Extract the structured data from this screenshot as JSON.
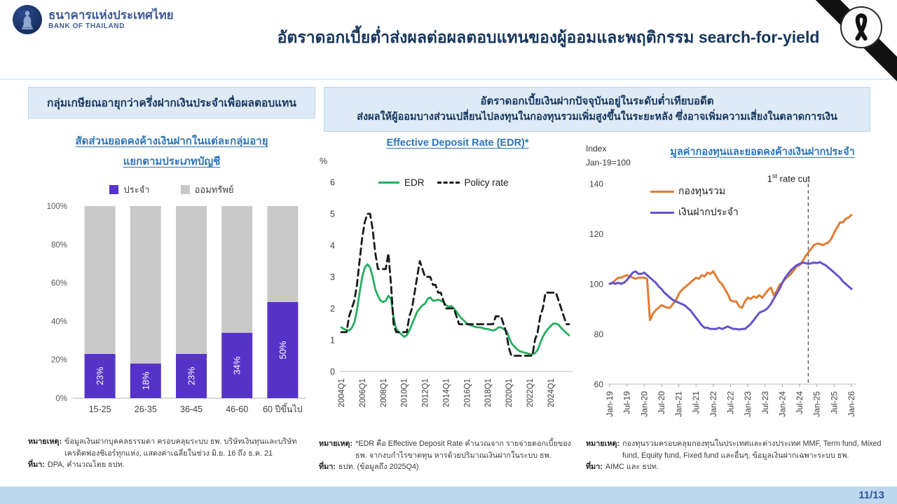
{
  "header": {
    "bank_name_th": "ธนาคารแห่งประเทศไทย",
    "bank_name_en": "BANK OF THAILAND",
    "title": "อัตราดอกเบี้ยต่ำส่งผลต่อผลตอบแทนของผู้ออมและพฤติกรรม search-for-yield"
  },
  "left_panel": {
    "headline": "กลุ่มเกษียณอายุกว่าครึ่งฝากเงินประจำเพื่อผลตอบแทน",
    "chart_title_line1": "สัดส่วนยอดคงค้างเงินฝากในแต่ละกลุ่มอายุ",
    "chart_title_line2": "แยกตามประเภทบัญชี",
    "legend": [
      "ประจำ",
      "ออมทรัพย์"
    ],
    "note_label": "หมายเหตุ:",
    "note_text": "ข้อมูลเงินฝากบุคคลธรรมดา ครอบคลุมระบบ ธพ. บริษัทเงินทุนและบริษัทเครดิตฟองซิเอร์ทุกแห่ง, แสดงค่าเฉลี่ยในช่วง มิ.ย. 16 ถึง ธ.ค. 21",
    "source_label": "ที่มา:",
    "source_text": "DPA, คำนวณโดย ธปท."
  },
  "right_headline": {
    "line1": "อัตราดอกเบี้ยเงินฝากปัจจุบันอยู่ในระดับต่ำเทียบอดีต",
    "line2": "ส่งผลให้ผู้ออมบางส่วนเปลี่ยนไปลงทุนในกองทุนรวมเพิ่มสูงขึ้นในระยะหลัง ซึ่งอาจเพิ่มความเสี่ยงในตลาดการเงิน"
  },
  "edr_panel": {
    "title": "Effective Deposit Rate (EDR)*",
    "y_unit": "%",
    "legend": [
      "EDR",
      "Policy rate"
    ],
    "note_label": "หมายเหตุ:",
    "note_text": "*EDR คือ Effective Deposit Rate คำนวณจาก รายจ่ายดอกเบี้ยของ ธพ. จากงบกำไรขาดทุน หารด้วยปริมาณเงินฝากในระบบ ธพ.",
    "source_label": "ที่มา:",
    "source_text": "ธปท. (ข้อมูลถึง 2025Q4)"
  },
  "funds_panel": {
    "title": "มูลค่ากองทุนและยอดคงค้างเงินฝากประจำ",
    "index_label_line1": "Index",
    "index_label_line2": "Jan-19=100",
    "annotation_num": "1",
    "annotation_sup": "st",
    "annotation_rest": " rate cut",
    "legend": [
      "กองทุนรวม",
      "เงินฝากประจำ"
    ],
    "note_label": "หมายเหตุ:",
    "note_text": "กองทุนรวมครอบคลุมกองทุนในประเทศและต่างประเทศ MMF, Term fund, Mixed fund, Equity fund, Fixed fund และอื่นๆ, ข้อมูลเงินฝากเฉพาะระบบ ธพ.",
    "source_label": "ที่มา:",
    "source_text": "AIMC และ ธปท."
  },
  "footer": {
    "page": "11/13"
  },
  "colors": {
    "fixed_deposit_purple": "#5633C8",
    "savings_gray": "#C9C9C9",
    "edr_green": "#27AD60",
    "policy_black": "#1A1A1A",
    "funds_orange": "#E07C33",
    "deposit_line_purple": "#6353CB",
    "accent_blue": "#2E75B6",
    "navy": "#17365D",
    "box_bg": "#DEEBF7",
    "footer_bar": "#BDD7EE"
  },
  "chart_data": [
    {
      "id": "deposit-share-by-age",
      "type": "bar",
      "stacked": true,
      "title": "สัดส่วนยอดคงค้างเงินฝากในแต่ละกลุ่มอายุ แยกตามประเภทบัญชี",
      "categories": [
        "15-25",
        "26-35",
        "36-45",
        "46-60",
        "60 ปีขึ้นไป"
      ],
      "series": [
        {
          "name": "ประจำ",
          "color": "#5633C8",
          "values": [
            23,
            18,
            23,
            34,
            50
          ],
          "labels": [
            "23%",
            "18%",
            "23%",
            "34%",
            "50%"
          ]
        },
        {
          "name": "ออมทรัพย์",
          "color": "#C9C9C9",
          "values": [
            77,
            82,
            77,
            66,
            50
          ]
        }
      ],
      "ylim": [
        0,
        100
      ],
      "yticks": [
        "0%",
        "20%",
        "40%",
        "60%",
        "80%",
        "100%"
      ],
      "grid": false,
      "legend_position": "top"
    },
    {
      "id": "edr-vs-policy",
      "type": "line",
      "title": "Effective Deposit Rate (EDR)*",
      "ylabel": "%",
      "ylim": [
        0,
        6
      ],
      "yticks": [
        0,
        1,
        2,
        3,
        4,
        5,
        6
      ],
      "x_tick_every": 8,
      "x_ticklabels": [
        "2004Q1",
        "2006Q1",
        "2008Q1",
        "2010Q1",
        "2012Q1",
        "2014Q1",
        "2016Q1",
        "2018Q1",
        "2020Q1",
        "2022Q1",
        "2024Q1"
      ],
      "x_range_note": "quarterly 2004Q1 to 2025Q4",
      "grid": false,
      "legend_position": "top",
      "series": [
        {
          "name": "EDR",
          "color": "#27AD60",
          "dash": false,
          "width": 2.8,
          "values": [
            1.4,
            1.35,
            1.32,
            1.3,
            1.38,
            1.55,
            1.95,
            2.5,
            3.0,
            3.3,
            3.4,
            3.3,
            3.0,
            2.6,
            2.4,
            2.25,
            2.2,
            2.25,
            2.4,
            2.3,
            1.7,
            1.35,
            1.25,
            1.18,
            1.1,
            1.15,
            1.3,
            1.5,
            1.7,
            1.9,
            2.0,
            2.1,
            2.15,
            2.3,
            2.35,
            2.25,
            2.25,
            2.28,
            2.25,
            2.2,
            2.1,
            2.05,
            2.08,
            2.0,
            1.9,
            1.78,
            1.68,
            1.6,
            1.52,
            1.48,
            1.45,
            1.42,
            1.4,
            1.4,
            1.38,
            1.35,
            1.35,
            1.32,
            1.3,
            1.33,
            1.4,
            1.4,
            1.35,
            1.3,
            1.1,
            0.9,
            0.8,
            0.72,
            0.65,
            0.62,
            0.6,
            0.58,
            0.55,
            0.55,
            0.58,
            0.68,
            0.9,
            1.1,
            1.25,
            1.35,
            1.45,
            1.52,
            1.52,
            1.48,
            1.38,
            1.3,
            1.22,
            1.15
          ]
        },
        {
          "name": "Policy rate",
          "color": "#1A1A1A",
          "dash": true,
          "width": 2.8,
          "values": [
            1.25,
            1.25,
            1.25,
            1.75,
            2.0,
            2.25,
            2.75,
            3.5,
            4.25,
            4.75,
            5.0,
            5.0,
            4.5,
            3.75,
            3.25,
            3.25,
            3.25,
            3.25,
            3.75,
            2.75,
            1.5,
            1.25,
            1.25,
            1.25,
            1.25,
            1.25,
            1.75,
            2.0,
            2.5,
            3.0,
            3.5,
            3.25,
            3.0,
            3.0,
            3.0,
            2.75,
            2.75,
            2.5,
            2.5,
            2.25,
            2.0,
            2.0,
            2.0,
            2.0,
            1.75,
            1.5,
            1.5,
            1.5,
            1.5,
            1.5,
            1.5,
            1.5,
            1.5,
            1.5,
            1.5,
            1.5,
            1.5,
            1.5,
            1.5,
            1.75,
            1.75,
            1.75,
            1.5,
            1.25,
            0.75,
            0.5,
            0.5,
            0.5,
            0.5,
            0.5,
            0.5,
            0.5,
            0.5,
            0.5,
            1.0,
            1.25,
            1.75,
            2.0,
            2.5,
            2.5,
            2.5,
            2.5,
            2.5,
            2.25,
            2.0,
            1.75,
            1.5,
            1.5
          ]
        }
      ]
    },
    {
      "id": "funds-vs-deposits",
      "type": "line",
      "title": "มูลค่ากองทุนและยอดคงค้างเงินฝากประจำ",
      "ylabel": "Index, Jan-19=100",
      "ylim": [
        60,
        140
      ],
      "yticks": [
        60,
        80,
        100,
        120,
        140
      ],
      "x_tick_every": 6,
      "x_ticklabels": [
        "Jan-19",
        "Jul-19",
        "Jan-20",
        "Jul-20",
        "Jan-21",
        "Jul-21",
        "Jan-22",
        "Jul-22",
        "Jan-23",
        "Jul-23",
        "Jan-24",
        "Jul-24",
        "Jan-25",
        "Jul-25",
        "Jan-26"
      ],
      "x_range_note": "monthly Jan-19 to Jan-26",
      "grid": false,
      "legend_position": "top-left",
      "annotation": {
        "label": "1st rate cut",
        "x_index": 69
      },
      "series": [
        {
          "name": "กองทุนรวม",
          "color": "#E07C33",
          "dash": false,
          "width": 3,
          "values": [
            100,
            100.5,
            101.5,
            102.5,
            102.5,
            103,
            103.5,
            103,
            102.5,
            102,
            102.5,
            102.5,
            102.5,
            102,
            85.5,
            88,
            89.5,
            90.5,
            91.5,
            91,
            90.5,
            90.5,
            92,
            93.5,
            96,
            97.5,
            98.5,
            99.5,
            100.5,
            101.5,
            102.5,
            102,
            103.5,
            103,
            104.5,
            104,
            105,
            103,
            101,
            100,
            98,
            96,
            93.5,
            93,
            93,
            91,
            90.5,
            93,
            94.5,
            94,
            95,
            94.5,
            95.5,
            94.5,
            96,
            97.5,
            98.5,
            95.5,
            97,
            99.5,
            100.5,
            102,
            103,
            104,
            105.5,
            107,
            107.5,
            109,
            111,
            112.5,
            114,
            115.5,
            116,
            116,
            115.5,
            116,
            116.5,
            118,
            120.5,
            122.5,
            124.5,
            124.5,
            126,
            126.5,
            127.5
          ]
        },
        {
          "name": "เงินฝากประจำ",
          "color": "#6353CB",
          "dash": false,
          "width": 3,
          "values": [
            100,
            100.5,
            100,
            100.5,
            100,
            100.5,
            101.5,
            103,
            104.5,
            105,
            104,
            104,
            104.5,
            103.5,
            102.5,
            101.5,
            100.5,
            99,
            98,
            96.5,
            95.5,
            94.5,
            93.5,
            93,
            92.5,
            92,
            91.5,
            90.5,
            89.5,
            88,
            86.5,
            85,
            83.5,
            82.5,
            82.5,
            82,
            82,
            82,
            82.5,
            82,
            82.5,
            83,
            82.5,
            82,
            82,
            81.8,
            82,
            82,
            83,
            84,
            85.5,
            87,
            88.5,
            89,
            89.5,
            90.5,
            92,
            94,
            96,
            98,
            100.5,
            102.5,
            104,
            105.5,
            106.5,
            107.5,
            108,
            108.5,
            108.3,
            108,
            108.2,
            108.5,
            108.3,
            108.7,
            108,
            107.5,
            106.5,
            105.5,
            104.5,
            103.5,
            102.5,
            101,
            100,
            99,
            98
          ]
        }
      ]
    }
  ]
}
